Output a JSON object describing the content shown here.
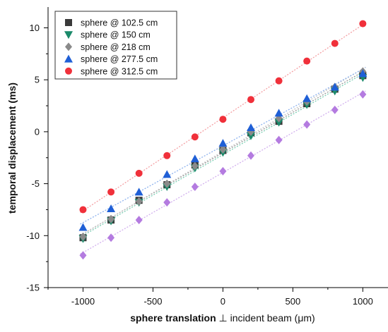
{
  "chart_data": {
    "type": "scatter",
    "xlabel_bold": "sphere translation",
    "xlabel_rest": " ⊥ incident beam (μm)",
    "ylabel": "temporal displacement (ms)",
    "xlim": [
      -1250,
      1180
    ],
    "ylim": [
      -15,
      12
    ],
    "xticks": [
      -1000,
      -500,
      0,
      500,
      1000
    ],
    "yticks": [
      -15,
      -10,
      -5,
      0,
      5,
      10
    ],
    "xtick_labels": [
      "-1000",
      "-500",
      "0",
      "500",
      "1000"
    ],
    "ytick_labels": [
      "-15",
      "-10",
      "-5",
      "0",
      "5",
      "10"
    ],
    "legend_position": "top-left",
    "grid": false,
    "series": [
      {
        "name": "sphere @ 102.5 cm",
        "marker": "square",
        "color": "#3a3a3a",
        "fit_color": "#9a9a9a",
        "x": [
          -1000,
          -800,
          -600,
          -400,
          -200,
          0,
          200,
          400,
          600,
          800,
          1000
        ],
        "y": [
          -10.2,
          -8.5,
          -6.6,
          -5.1,
          -3.2,
          -1.8,
          -0.1,
          1.0,
          2.7,
          4.1,
          5.4
        ]
      },
      {
        "name": "sphere @ 150 cm",
        "marker": "triangle-down",
        "color": "#1a8a6a",
        "fit_color": "#7ccfb4",
        "x": [
          -1000,
          -800,
          -600,
          -400,
          -200,
          0,
          200,
          400,
          600,
          800,
          1000
        ],
        "y": [
          -10.3,
          -8.6,
          -6.8,
          -5.3,
          -3.5,
          -2.0,
          -0.4,
          0.9,
          2.6,
          3.9,
          5.2
        ]
      },
      {
        "name": "sphere @ 218 cm",
        "marker": "diamond",
        "color": "#8a8a8a",
        "fit_color": "#c4c4c4",
        "x": [
          -1000,
          -800,
          -600,
          -400,
          -200,
          0,
          200,
          400,
          600,
          800,
          1000
        ],
        "y": [
          -10.1,
          -8.4,
          -6.7,
          -5.0,
          -3.3,
          -1.7,
          0.0,
          1.3,
          2.9,
          4.3,
          5.8
        ]
      },
      {
        "name": "sphere @ 277.5 cm",
        "marker": "triangle-up",
        "color": "#1f5fd6",
        "fit_color": "#8fb3ee",
        "x": [
          -1000,
          -800,
          -600,
          -400,
          -200,
          0,
          200,
          400,
          600,
          800,
          1000
        ],
        "y": [
          -9.2,
          -7.4,
          -5.8,
          -4.1,
          -2.6,
          -1.1,
          0.4,
          1.8,
          3.2,
          4.3,
          5.6
        ]
      },
      {
        "name": "sphere @ 312.5 cm",
        "marker": "circle",
        "color": "#f0303a",
        "fit_color": "#f4a0a4",
        "x": [
          -1000,
          -800,
          -600,
          -400,
          -200,
          0,
          200,
          400,
          600,
          800,
          1000
        ],
        "y": [
          -7.5,
          -5.8,
          -4.0,
          -2.3,
          -0.5,
          1.2,
          3.1,
          4.9,
          6.8,
          8.5,
          10.4
        ]
      },
      {
        "name": "",
        "marker": "diamond",
        "color": "#b47be0",
        "fit_color": "#d2b0ee",
        "x": [
          -1000,
          -800,
          -600,
          -400,
          -200,
          0,
          200,
          400,
          600,
          800,
          1000
        ],
        "y": [
          -11.9,
          -10.2,
          -8.5,
          -6.8,
          -5.3,
          -3.8,
          -2.3,
          -0.8,
          0.7,
          2.1,
          3.6
        ]
      }
    ]
  }
}
